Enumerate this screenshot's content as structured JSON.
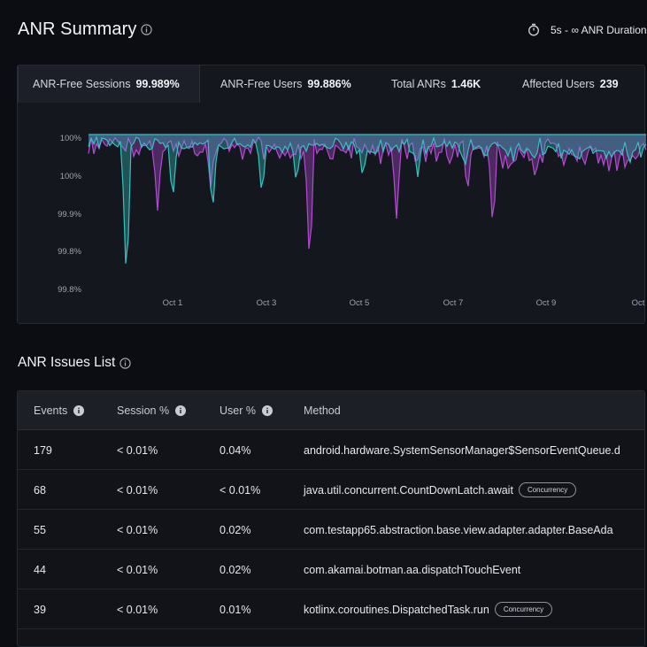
{
  "header": {
    "title": "ANR Summary",
    "duration_label": "5s - ∞ ANR Duration"
  },
  "tabs": [
    {
      "label": "ANR-Free Sessions",
      "value": "99.989%",
      "active": true
    },
    {
      "label": "ANR-Free Users",
      "value": "99.886%",
      "active": false
    },
    {
      "label": "Total ANRs",
      "value": "1.46K",
      "active": false
    },
    {
      "label": "Affected Users",
      "value": "239",
      "active": false
    }
  ],
  "chart_data": {
    "type": "area",
    "y_tick_labels": [
      "100%",
      "100%",
      "99.9%",
      "99.8%",
      "99.8%"
    ],
    "x_tick_labels": [
      "Oct 1",
      "Oct 3",
      "Oct 5",
      "Oct 7",
      "Oct 9",
      "Oct"
    ],
    "series": [
      {
        "color": "#35c2c1"
      },
      {
        "color": "#b54ad6"
      }
    ]
  },
  "issues": {
    "title": "ANR Issues List",
    "columns": [
      "Events",
      "Session %",
      "User %",
      "Method"
    ],
    "rows": [
      {
        "events": "179",
        "session": "< 0.01%",
        "user": "0.04%",
        "method": "android.hardware.SystemSensorManager$SensorEventQueue.d",
        "badge": ""
      },
      {
        "events": "68",
        "session": "< 0.01%",
        "user": "< 0.01%",
        "method": "java.util.concurrent.CountDownLatch.await",
        "badge": "Concurrency"
      },
      {
        "events": "55",
        "session": "< 0.01%",
        "user": "0.02%",
        "method": "com.testapp65.abstraction.base.view.adapter.adapter.BaseAda",
        "badge": ""
      },
      {
        "events": "44",
        "session": "< 0.01%",
        "user": "0.02%",
        "method": "com.akamai.botman.aa.dispatchTouchEvent",
        "badge": ""
      },
      {
        "events": "39",
        "session": "< 0.01%",
        "user": "0.01%",
        "method": "kotlinx.coroutines.DispatchedTask.run",
        "badge": "Concurrency"
      }
    ]
  },
  "colors": {
    "background": "#0b0d12",
    "panel": "#14171e",
    "teal": "#35c2c1",
    "purple": "#b54ad6"
  }
}
